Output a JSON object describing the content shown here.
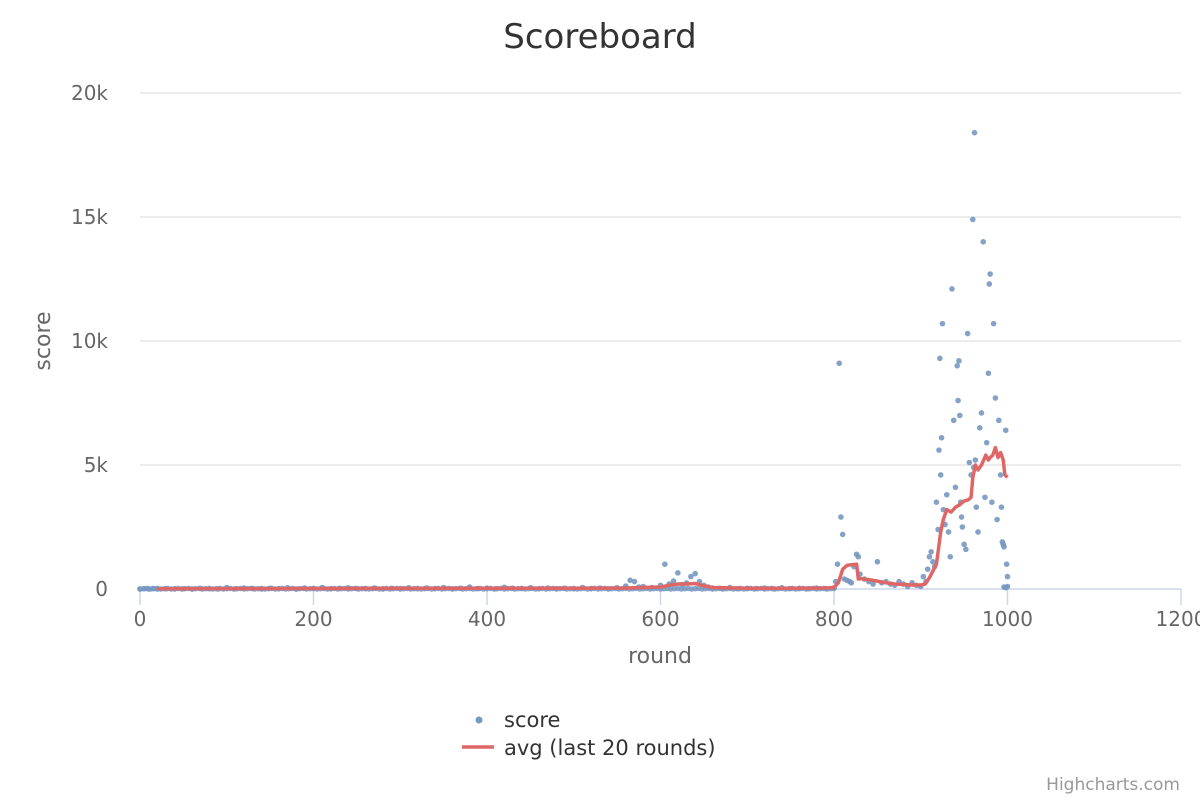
{
  "chart_data": {
    "type": "scatter",
    "title": "Scoreboard",
    "xlabel": "round",
    "ylabel": "score",
    "xlim": [
      0,
      1200
    ],
    "ylim": [
      0,
      20000
    ],
    "x_ticks": [
      0,
      200,
      400,
      600,
      800,
      1000,
      1200
    ],
    "y_ticks": [
      0,
      5000,
      10000,
      15000,
      20000
    ],
    "x_tick_labels": [
      "0",
      "200",
      "400",
      "600",
      "800",
      "1000",
      "1200"
    ],
    "y_tick_labels": [
      "0",
      "5k",
      "10k",
      "15k",
      "20k"
    ],
    "grid": "horizontal",
    "legend_position": "bottom-center",
    "credit": "Highcharts.com",
    "series": [
      {
        "name": "score",
        "kind": "scatter",
        "color": "#7798BF",
        "points": [
          [
            0,
            0
          ],
          [
            5,
            10
          ],
          [
            10,
            0
          ],
          [
            15,
            20
          ],
          [
            20,
            0
          ],
          [
            30,
            10
          ],
          [
            40,
            0
          ],
          [
            50,
            10
          ],
          [
            60,
            0
          ],
          [
            70,
            20
          ],
          [
            80,
            10
          ],
          [
            90,
            0
          ],
          [
            100,
            60
          ],
          [
            110,
            10
          ],
          [
            120,
            40
          ],
          [
            130,
            20
          ],
          [
            140,
            0
          ],
          [
            150,
            30
          ],
          [
            160,
            10
          ],
          [
            170,
            50
          ],
          [
            180,
            0
          ],
          [
            190,
            40
          ],
          [
            200,
            20
          ],
          [
            210,
            60
          ],
          [
            220,
            10
          ],
          [
            230,
            30
          ],
          [
            240,
            50
          ],
          [
            250,
            20
          ],
          [
            260,
            10
          ],
          [
            270,
            40
          ],
          [
            280,
            0
          ],
          [
            290,
            30
          ],
          [
            300,
            20
          ],
          [
            310,
            50
          ],
          [
            320,
            10
          ],
          [
            330,
            40
          ],
          [
            340,
            20
          ],
          [
            350,
            60
          ],
          [
            360,
            10
          ],
          [
            370,
            30
          ],
          [
            380,
            80
          ],
          [
            390,
            20
          ],
          [
            400,
            40
          ],
          [
            410,
            10
          ],
          [
            420,
            70
          ],
          [
            430,
            30
          ],
          [
            440,
            20
          ],
          [
            450,
            50
          ],
          [
            460,
            10
          ],
          [
            470,
            40
          ],
          [
            480,
            20
          ],
          [
            490,
            30
          ],
          [
            500,
            10
          ],
          [
            510,
            60
          ],
          [
            520,
            20
          ],
          [
            530,
            40
          ],
          [
            540,
            10
          ],
          [
            550,
            50
          ],
          [
            560,
            120
          ],
          [
            565,
            350
          ],
          [
            570,
            300
          ],
          [
            575,
            80
          ],
          [
            580,
            100
          ],
          [
            590,
            60
          ],
          [
            600,
            150
          ],
          [
            605,
            1000
          ],
          [
            610,
            200
          ],
          [
            615,
            320
          ],
          [
            620,
            650
          ],
          [
            625,
            180
          ],
          [
            630,
            240
          ],
          [
            635,
            500
          ],
          [
            640,
            620
          ],
          [
            645,
            300
          ],
          [
            650,
            150
          ],
          [
            655,
            80
          ],
          [
            660,
            40
          ],
          [
            670,
            20
          ],
          [
            680,
            60
          ],
          [
            690,
            10
          ],
          [
            700,
            30
          ],
          [
            710,
            20
          ],
          [
            720,
            40
          ],
          [
            730,
            10
          ],
          [
            740,
            50
          ],
          [
            750,
            20
          ],
          [
            760,
            30
          ],
          [
            770,
            10
          ],
          [
            780,
            40
          ],
          [
            790,
            20
          ],
          [
            800,
            50
          ],
          [
            802,
            300
          ],
          [
            804,
            1000
          ],
          [
            806,
            9100
          ],
          [
            808,
            2900
          ],
          [
            810,
            2200
          ],
          [
            812,
            400
          ],
          [
            815,
            350
          ],
          [
            818,
            300
          ],
          [
            820,
            250
          ],
          [
            823,
            900
          ],
          [
            826,
            1400
          ],
          [
            828,
            1300
          ],
          [
            830,
            600
          ],
          [
            835,
            400
          ],
          [
            840,
            300
          ],
          [
            845,
            200
          ],
          [
            850,
            1100
          ],
          [
            855,
            250
          ],
          [
            860,
            300
          ],
          [
            865,
            200
          ],
          [
            870,
            150
          ],
          [
            875,
            300
          ],
          [
            880,
            200
          ],
          [
            885,
            100
          ],
          [
            890,
            250
          ],
          [
            895,
            150
          ],
          [
            900,
            100
          ],
          [
            903,
            500
          ],
          [
            906,
            300
          ],
          [
            908,
            800
          ],
          [
            910,
            1300
          ],
          [
            912,
            1500
          ],
          [
            914,
            1100
          ],
          [
            916,
            900
          ],
          [
            918,
            3500
          ],
          [
            920,
            2400
          ],
          [
            921,
            5600
          ],
          [
            922,
            9300
          ],
          [
            923,
            4600
          ],
          [
            924,
            6100
          ],
          [
            925,
            10700
          ],
          [
            926,
            3200
          ],
          [
            928,
            2600
          ],
          [
            930,
            3800
          ],
          [
            932,
            2300
          ],
          [
            934,
            1300
          ],
          [
            936,
            12100
          ],
          [
            938,
            6800
          ],
          [
            940,
            4100
          ],
          [
            942,
            9000
          ],
          [
            943,
            7600
          ],
          [
            944,
            9200
          ],
          [
            945,
            7000
          ],
          [
            946,
            3500
          ],
          [
            947,
            2900
          ],
          [
            948,
            2500
          ],
          [
            950,
            1800
          ],
          [
            952,
            1600
          ],
          [
            954,
            10300
          ],
          [
            956,
            5100
          ],
          [
            958,
            4600
          ],
          [
            960,
            14900
          ],
          [
            961,
            4900
          ],
          [
            962,
            18400
          ],
          [
            963,
            5200
          ],
          [
            964,
            3300
          ],
          [
            966,
            2300
          ],
          [
            968,
            6500
          ],
          [
            970,
            7100
          ],
          [
            972,
            14000
          ],
          [
            974,
            3700
          ],
          [
            976,
            5900
          ],
          [
            978,
            8700
          ],
          [
            979,
            12300
          ],
          [
            980,
            12700
          ],
          [
            982,
            3500
          ],
          [
            984,
            10700
          ],
          [
            986,
            7700
          ],
          [
            988,
            2800
          ],
          [
            990,
            6800
          ],
          [
            992,
            4600
          ],
          [
            993,
            3300
          ],
          [
            994,
            1900
          ],
          [
            995,
            1800
          ],
          [
            996,
            1700
          ],
          [
            998,
            6400
          ],
          [
            999,
            1000
          ],
          [
            1000,
            500
          ],
          [
            1000,
            100
          ],
          [
            998,
            50
          ],
          [
            996,
            80
          ]
        ]
      },
      {
        "name": "avg (last 20 rounds)",
        "kind": "line",
        "color": "#E06666",
        "points": [
          [
            20,
            10
          ],
          [
            100,
            15
          ],
          [
            200,
            20
          ],
          [
            300,
            25
          ],
          [
            400,
            30
          ],
          [
            500,
            30
          ],
          [
            560,
            40
          ],
          [
            580,
            60
          ],
          [
            600,
            80
          ],
          [
            610,
            150
          ],
          [
            620,
            200
          ],
          [
            630,
            200
          ],
          [
            640,
            220
          ],
          [
            650,
            130
          ],
          [
            660,
            60
          ],
          [
            700,
            30
          ],
          [
            750,
            30
          ],
          [
            790,
            40
          ],
          [
            800,
            60
          ],
          [
            805,
            250
          ],
          [
            810,
            800
          ],
          [
            815,
            950
          ],
          [
            820,
            980
          ],
          [
            826,
            1000
          ],
          [
            828,
            400
          ],
          [
            830,
            420
          ],
          [
            840,
            380
          ],
          [
            850,
            320
          ],
          [
            860,
            250
          ],
          [
            870,
            200
          ],
          [
            880,
            180
          ],
          [
            890,
            160
          ],
          [
            900,
            160
          ],
          [
            905,
            200
          ],
          [
            910,
            450
          ],
          [
            915,
            800
          ],
          [
            918,
            1000
          ],
          [
            920,
            1500
          ],
          [
            923,
            2300
          ],
          [
            926,
            2800
          ],
          [
            930,
            3200
          ],
          [
            935,
            3100
          ],
          [
            940,
            3300
          ],
          [
            945,
            3400
          ],
          [
            950,
            3550
          ],
          [
            955,
            3600
          ],
          [
            958,
            3700
          ],
          [
            960,
            4500
          ],
          [
            963,
            5000
          ],
          [
            966,
            4800
          ],
          [
            970,
            5000
          ],
          [
            975,
            5400
          ],
          [
            978,
            5200
          ],
          [
            980,
            5300
          ],
          [
            983,
            5400
          ],
          [
            986,
            5700
          ],
          [
            989,
            5300
          ],
          [
            992,
            5500
          ],
          [
            995,
            5200
          ],
          [
            997,
            4600
          ],
          [
            1000,
            4500
          ]
        ]
      }
    ]
  }
}
